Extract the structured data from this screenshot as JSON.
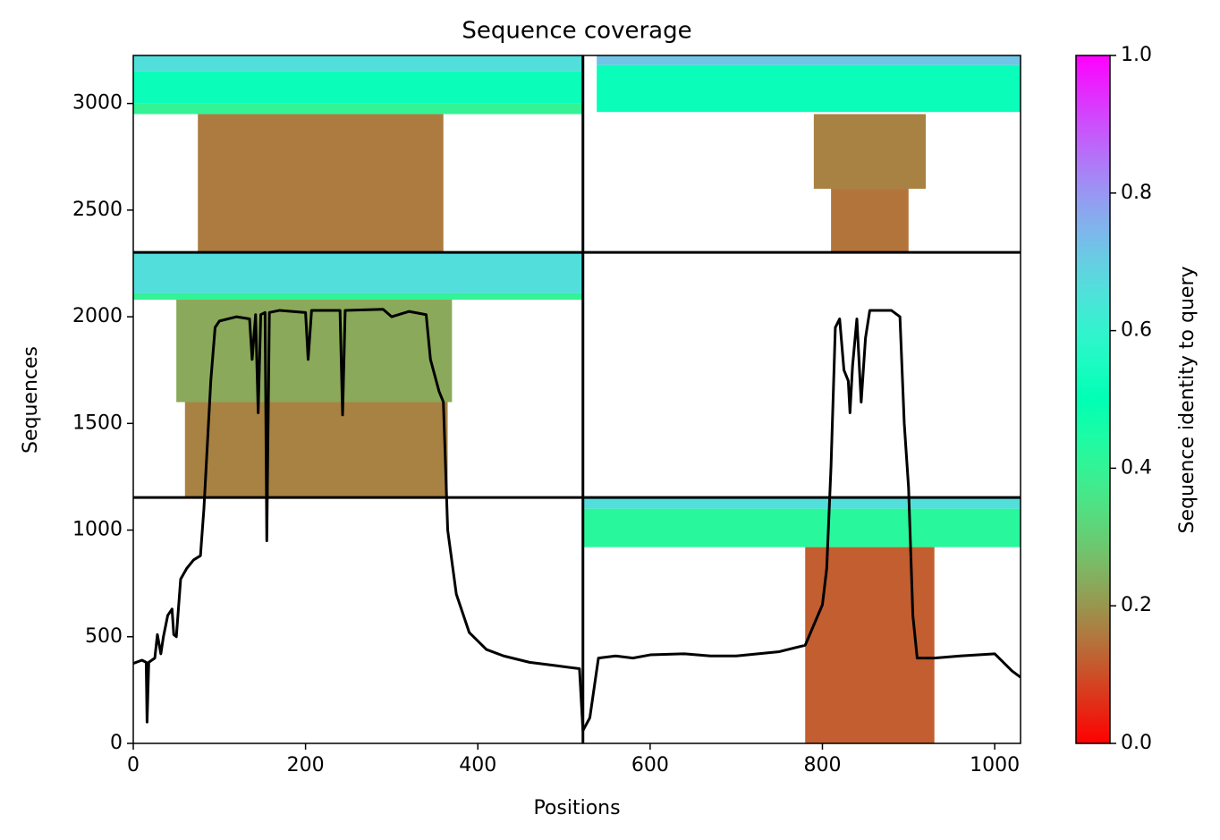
{
  "chart_data": {
    "type": "coverage",
    "title": "Sequence coverage",
    "x_label": "Positions",
    "y_label": "Sequences",
    "colorbar_label": "Sequence identity to query",
    "colormap": "rainbow_r",
    "xlim": [
      0,
      1030
    ],
    "xticks": [
      0,
      200,
      400,
      600,
      800,
      1000
    ],
    "ylim": [
      0,
      3225
    ],
    "yticks": [
      0,
      500,
      1000,
      1500,
      2000,
      2500,
      3000
    ],
    "clim": [
      0,
      1
    ],
    "cticks": [
      {
        "value": 0,
        "label": "0.0"
      },
      0.2,
      0.4,
      0.6,
      0.8,
      {
        "value": 1,
        "label": "1.0"
      }
    ],
    "dividers_x": [
      522
    ],
    "dividers_y": [
      1153,
      2302
    ],
    "blocks": [
      {
        "x": [
          0,
          522
        ],
        "y": [
          3150,
          3225
        ],
        "identity": 0.66
      },
      {
        "x": [
          0,
          522
        ],
        "y": [
          3000,
          3150
        ],
        "identity": 0.52
      },
      {
        "x": [
          0,
          522
        ],
        "y": [
          2950,
          3000
        ],
        "identity": 0.4
      },
      {
        "x": [
          75,
          360
        ],
        "y": [
          2302,
          2950
        ],
        "identity": 0.16
      },
      {
        "x": [
          538,
          1030
        ],
        "y": [
          3180,
          3225
        ],
        "identity": 0.72
      },
      {
        "x": [
          538,
          1030
        ],
        "y": [
          2960,
          3180
        ],
        "identity": 0.52
      },
      {
        "x": [
          790,
          920
        ],
        "y": [
          2600,
          2950
        ],
        "identity": 0.17
      },
      {
        "x": [
          810,
          900
        ],
        "y": [
          2302,
          2600
        ],
        "identity": 0.15
      },
      {
        "x": [
          0,
          522
        ],
        "y": [
          2110,
          2302
        ],
        "identity": 0.66
      },
      {
        "x": [
          0,
          522
        ],
        "y": [
          2080,
          2110
        ],
        "identity": 0.4
      },
      {
        "x": [
          50,
          370
        ],
        "y": [
          1600,
          2080
        ],
        "identity": 0.23
      },
      {
        "x": [
          60,
          365
        ],
        "y": [
          1153,
          1600
        ],
        "identity": 0.17
      },
      {
        "x": [
          522,
          1030
        ],
        "y": [
          1100,
          1153
        ],
        "identity": 0.66
      },
      {
        "x": [
          522,
          1030
        ],
        "y": [
          920,
          1100
        ],
        "identity": 0.42
      },
      {
        "x": [
          780,
          930
        ],
        "y": [
          0,
          920
        ],
        "identity": 0.12
      }
    ],
    "coverage": {
      "color": "#000000",
      "x": [
        0,
        10,
        15,
        16,
        18,
        25,
        28,
        32,
        35,
        40,
        45,
        47,
        50,
        55,
        62,
        70,
        78,
        82,
        90,
        95,
        100,
        120,
        135,
        138,
        142,
        145,
        148,
        153,
        155,
        158,
        170,
        200,
        203,
        207,
        240,
        243,
        246,
        290,
        300,
        320,
        340,
        345,
        355,
        360,
        365,
        375,
        390,
        410,
        430,
        460,
        490,
        518,
        522,
        530,
        540,
        560,
        580,
        600,
        640,
        670,
        700,
        750,
        780,
        800,
        805,
        810,
        815,
        820,
        825,
        830,
        832,
        835,
        840,
        845,
        850,
        855,
        880,
        890,
        895,
        900,
        905,
        910,
        930,
        960,
        1000,
        1020,
        1030
      ],
      "y": [
        375,
        390,
        380,
        100,
        380,
        400,
        510,
        420,
        500,
        600,
        630,
        510,
        500,
        770,
        820,
        860,
        880,
        1100,
        1700,
        1950,
        1980,
        2000,
        1990,
        1800,
        2010,
        1550,
        2010,
        2020,
        950,
        2020,
        2030,
        2020,
        1800,
        2030,
        2030,
        1540,
        2030,
        2035,
        2000,
        2025,
        2010,
        1800,
        1650,
        1600,
        1000,
        700,
        520,
        440,
        410,
        380,
        365,
        350,
        60,
        120,
        400,
        410,
        400,
        415,
        420,
        410,
        410,
        430,
        460,
        650,
        820,
        1300,
        1950,
        1990,
        1750,
        1700,
        1550,
        1770,
        1990,
        1600,
        1900,
        2030,
        2030,
        2000,
        1500,
        1200,
        600,
        400,
        400,
        410,
        420,
        340,
        310
      ]
    }
  }
}
